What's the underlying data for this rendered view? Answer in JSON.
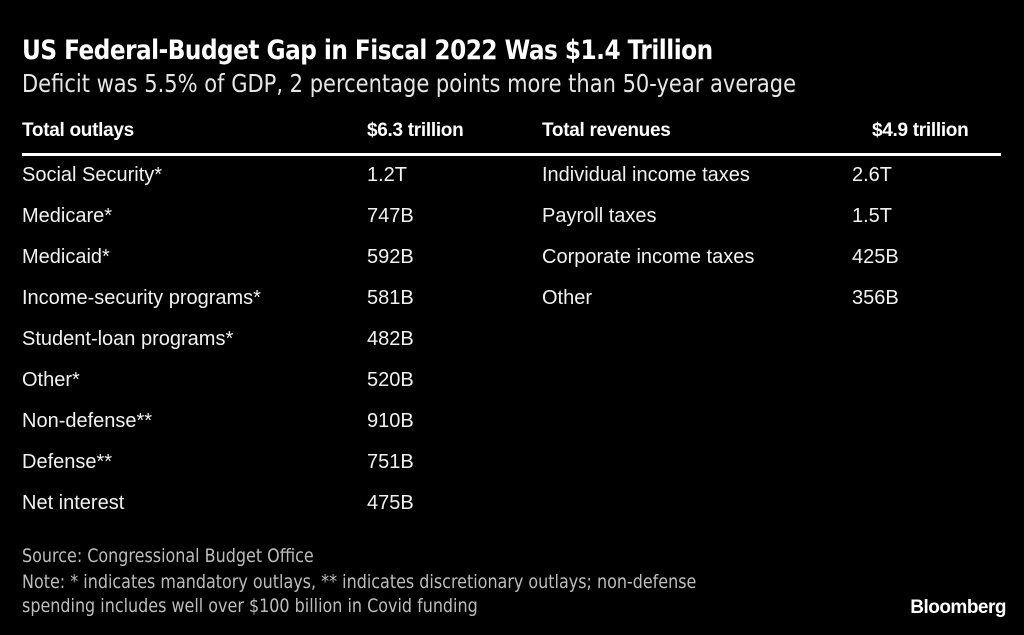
{
  "chart_data": {
    "type": "table",
    "title": "US Federal-Budget Gap in Fiscal 2022 Was $1.4 Trillion",
    "subtitle": "Deficit was 5.5% of GDP, 2 percentage points more than 50-year average",
    "outlays": {
      "header": "Total outlays",
      "total": "$6.3 trillion",
      "rows": [
        {
          "label": "Social Security*",
          "value": "1.2T"
        },
        {
          "label": "Medicare*",
          "value": "747B"
        },
        {
          "label": "Medicaid*",
          "value": "592B"
        },
        {
          "label": "Income-security programs*",
          "value": "581B"
        },
        {
          "label": "Student-loan programs*",
          "value": "482B"
        },
        {
          "label": "Other*",
          "value": "520B"
        },
        {
          "label": "Non-defense**",
          "value": "910B"
        },
        {
          "label": "Defense**",
          "value": "751B"
        },
        {
          "label": "Net interest",
          "value": "475B"
        }
      ]
    },
    "revenues": {
      "header": "Total revenues",
      "total": "$4.9 trillion",
      "rows": [
        {
          "label": "Individual income taxes",
          "value": "2.6T"
        },
        {
          "label": "Payroll taxes",
          "value": "1.5T"
        },
        {
          "label": "Corporate income taxes",
          "value": "425B"
        },
        {
          "label": "Other",
          "value": "356B"
        }
      ]
    },
    "source": "Source: Congressional Budget Office",
    "note_line1": "Note: * indicates mandatory outlays, ** indicates discretionary outlays; non-defense",
    "note_line2": "spending includes well over $100 billion in Covid funding",
    "brand": "Bloomberg"
  }
}
